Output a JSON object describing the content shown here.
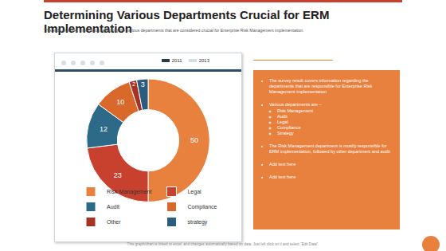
{
  "chart_data": {
    "type": "donut",
    "categories": [
      "Risk Management",
      "Legal",
      "Audit",
      "Compliance",
      "Other",
      "strategy"
    ],
    "values": [
      50,
      23,
      12,
      10,
      2,
      3
    ],
    "colors": [
      "#e8803e",
      "#c8412e",
      "#2d6a88",
      "#d8692a",
      "#a63226",
      "#2b5c7e"
    ],
    "data_labels": true,
    "legend": "bottom"
  },
  "slide": {
    "title": "Determining Various Departments Crucial for ERM Implementation",
    "subtitle": "This slide provides information regarding the various departments that are considered crucial for Enterprise Risk Management implementation.",
    "header_legend": [
      {
        "name": "2011",
        "color": "#2b3a4a"
      },
      {
        "name": "2013",
        "color": "#d7dde2"
      }
    ],
    "panel": [
      {
        "text": "The survey result covers information regarding the departments that are responsible for Enterprise Risk Management implementation"
      },
      {
        "text": "Various departments are –",
        "items": [
          "Risk Management",
          "Audit",
          "Legal",
          "Compliance",
          "Strategy"
        ]
      },
      {
        "text": "The Risk Management department is mostly responsible for ERM implementation, followed by other department and audit"
      },
      {
        "text": "Add text here"
      },
      {
        "text": "Add text here"
      }
    ],
    "footer": "This graph/chart is linked to excel, and changes automatically based on data. Just left click on it and select “Edit Data”."
  }
}
